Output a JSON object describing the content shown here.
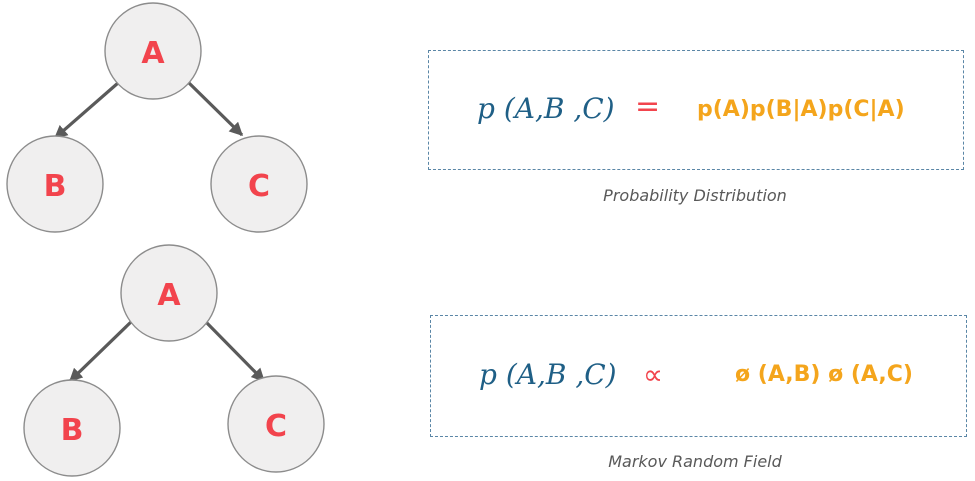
{
  "bayesian": {
    "nodes": {
      "a": "A",
      "b": "B",
      "c": "C"
    },
    "formula": {
      "lhs": "p (A,B ,C)",
      "operator": "=",
      "rhs": "p(A)p(B|A)p(C|A)"
    },
    "caption": "Probability Distribution"
  },
  "markov": {
    "nodes": {
      "a": "A",
      "b": "B",
      "c": "C"
    },
    "formula": {
      "lhs": "p (A,B ,C)",
      "operator": "∝",
      "rhs": "ø (A,B) ø (A,C)"
    },
    "caption": "Markov Random Field"
  },
  "colors": {
    "node_fill": "#f0efef",
    "node_stroke": "#8c8c8c",
    "node_label": "#f2444d",
    "edge": "#5a5a5a",
    "lhs": "#1f5f86",
    "operator": "#f2444d",
    "rhs": "#f4a51c",
    "box_border": "#5a86a6",
    "caption": "#595959"
  }
}
